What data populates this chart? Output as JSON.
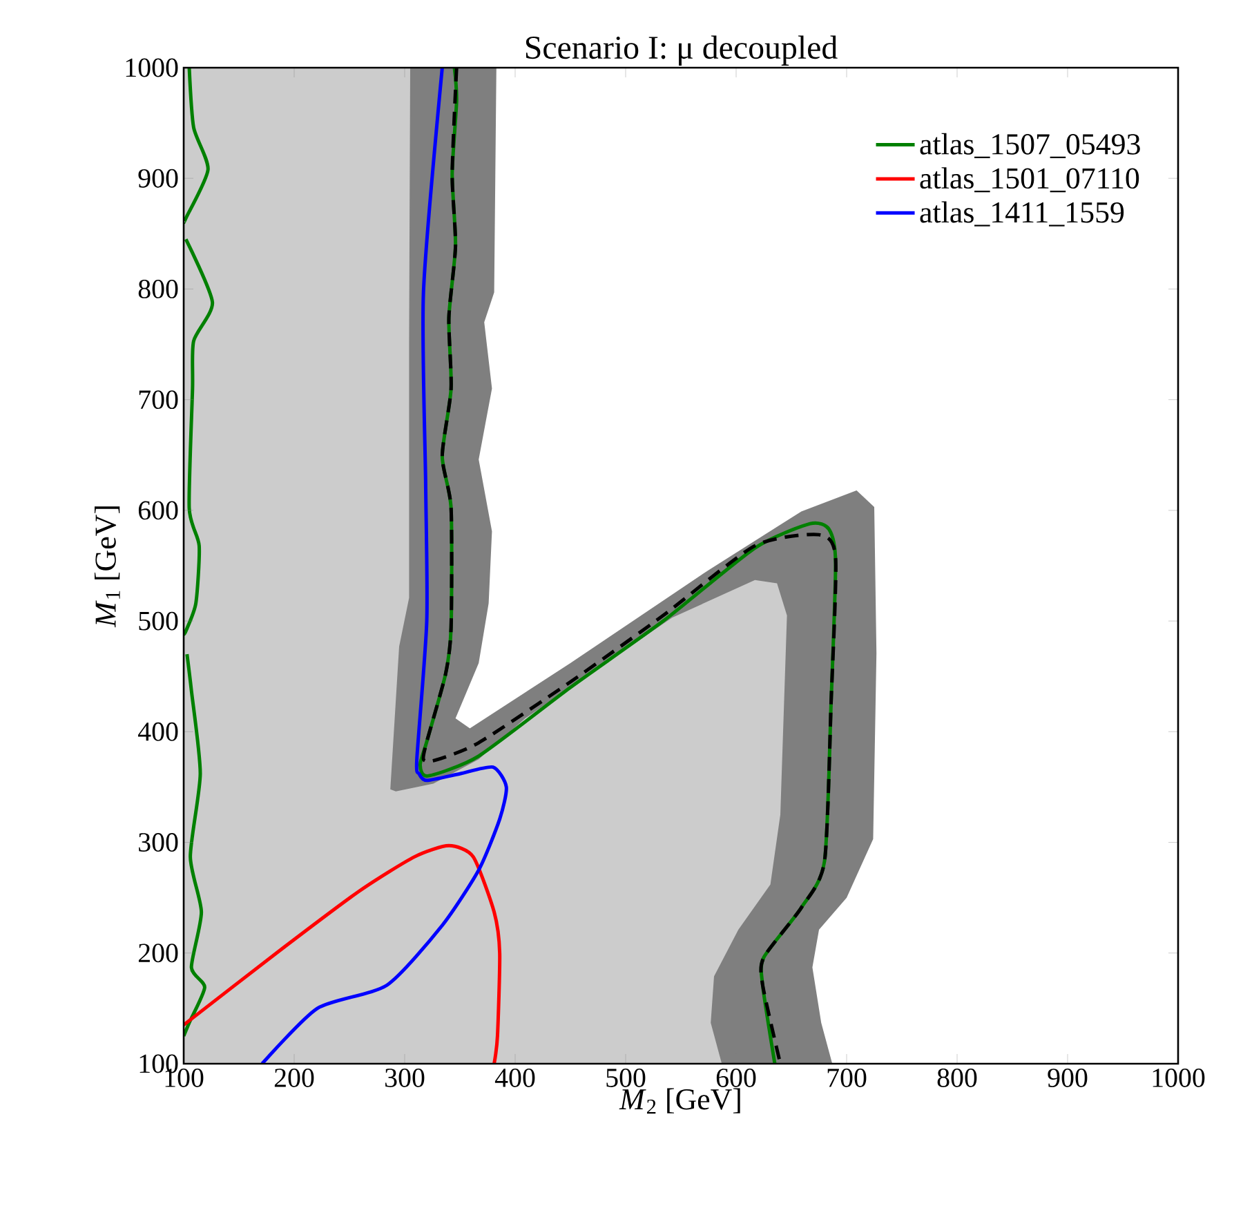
{
  "chart_data": {
    "type": "line",
    "title": "Scenario I: μ decoupled",
    "xlabel": "*M*$_{2}$ [GeV]",
    "ylabel": "*M*$_{1}$ [GeV]",
    "xlim": [
      100,
      1000
    ],
    "ylim": [
      100,
      1000
    ],
    "xticks": [
      100,
      200,
      300,
      400,
      500,
      600,
      700,
      800,
      900,
      1000
    ],
    "yticks": [
      100,
      200,
      300,
      400,
      500,
      600,
      700,
      800,
      900,
      1000
    ],
    "grid": false,
    "legend": "top right",
    "series": [
      {
        "type": "area",
        "color": "#7f7f7f",
        "x": [
          100,
          100,
          383,
          381,
          372,
          379,
          367,
          379,
          376,
          367,
          346,
          359,
          450,
          575,
          659,
          709,
          725,
          727,
          724,
          700,
          675,
          669,
          677,
          687
        ],
        "values": [
          100,
          1000,
          1000,
          797,
          770,
          710,
          646,
          581,
          516,
          462,
          412,
          403,
          462,
          546,
          599,
          618,
          603,
          471,
          303,
          250,
          221,
          187,
          137,
          100
        ]
      },
      {
        "type": "area",
        "color": "#cccccc",
        "x": [
          100,
          100,
          305,
          304,
          304,
          295,
          287,
          292,
          326,
          367,
          409,
          542,
          617,
          637,
          646,
          640,
          631,
          602,
          580,
          577,
          587
        ],
        "values": [
          100,
          1000,
          1000,
          753,
          521,
          477,
          348,
          346,
          353,
          375,
          412,
          503,
          537,
          534,
          505,
          325,
          262,
          221,
          179,
          137,
          100
        ]
      },
      {
        "name": "atlas_1507_05493",
        "color": "#008000",
        "x": [
          105,
          109,
          122,
          102.5,
          100,
          null,
          102,
          126,
          109,
          108,
          105,
          114,
          111,
          102,
          100,
          null,
          103,
          107,
          115,
          106,
          116,
          107,
          119,
          105,
          100,
          null,
          345,
          347,
          343,
          346,
          340,
          342,
          334,
          342,
          342,
          337,
          320,
          314,
          321,
          367,
          450,
          534,
          617,
          667,
          684,
          690,
          686,
          680,
          659,
          625,
          624,
          635
        ],
        "values": [
          1000,
          946,
          908,
          865,
          860,
          null,
          845,
          788,
          753,
          710,
          602,
          568,
          516,
          491,
          488,
          null,
          470,
          437,
          362,
          287,
          237,
          187,
          169,
          137,
          125,
          null,
          1000,
          970,
          904,
          839,
          774,
          710,
          649,
          602,
          494,
          452,
          391,
          370,
          360,
          378,
          440,
          500,
          566,
          588,
          583,
          553,
          428,
          283,
          241,
          196,
          171,
          100
        ]
      },
      {
        "name": "atlas_1501_07110",
        "color": "#ff0000",
        "x": [
          100,
          184,
          259,
          309,
          340,
          362,
          381,
          386,
          384,
          381
        ],
        "values": [
          135,
          200,
          256,
          287,
          297,
          287,
          237,
          200,
          125,
          100
        ]
      },
      {
        "name": "atlas_1411_1559",
        "color": "#0000ff",
        "x": [
          334,
          317,
          319,
          320,
          311,
          313,
          320,
          350,
          380,
          392,
          386,
          367,
          334,
          284,
          221,
          171
        ],
        "values": [
          1000,
          797,
          624,
          500,
          375,
          362,
          356,
          362,
          368,
          350,
          321,
          275,
          225,
          171,
          150,
          100
        ]
      },
      {
        "color": "#000000",
        "line_style": "dashed",
        "x": [
          347,
          343,
          346,
          340,
          342,
          334,
          342,
          342,
          337,
          320,
          317,
          327,
          367,
          450,
          534,
          617,
          675,
          690,
          686,
          680,
          659,
          625,
          624,
          640
        ],
        "values": [
          1000,
          904,
          839,
          774,
          710,
          649,
          602,
          494,
          452,
          391,
          375,
          374,
          390,
          445,
          505,
          568,
          578,
          557,
          428,
          283,
          241,
          196,
          171,
          100
        ]
      }
    ]
  }
}
